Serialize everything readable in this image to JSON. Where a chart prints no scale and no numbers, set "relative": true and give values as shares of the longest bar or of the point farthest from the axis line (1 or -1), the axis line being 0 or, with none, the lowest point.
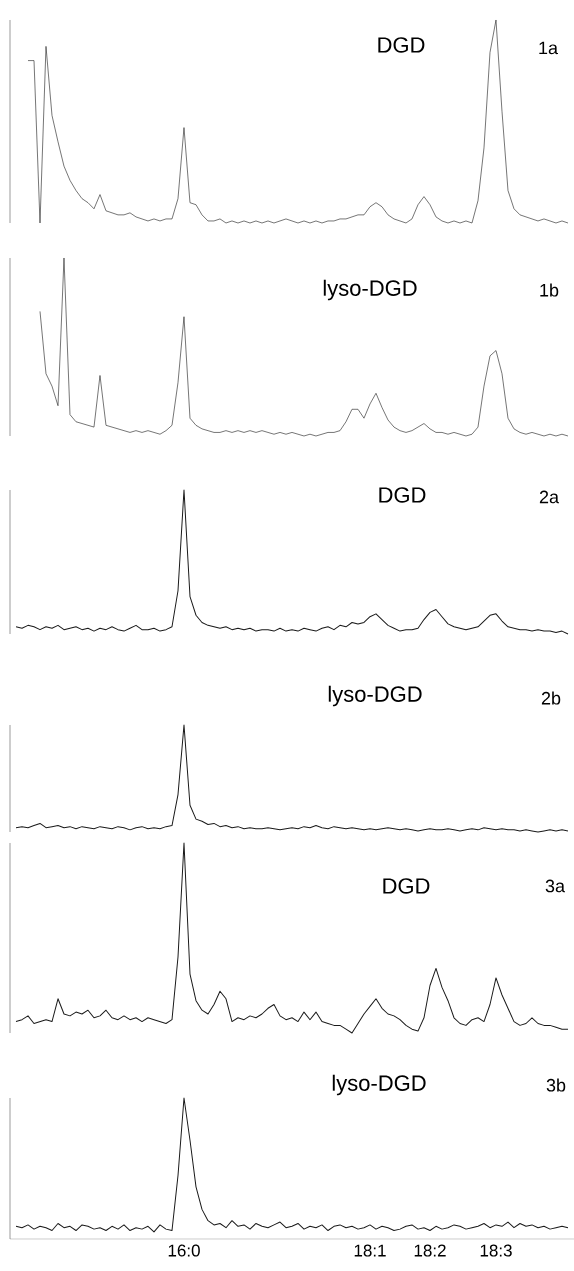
{
  "chart_data": [
    {
      "type": "line",
      "relative": true,
      "tick_labels": false,
      "annotations": [
        "DGD",
        "1a"
      ],
      "categories": [
        null,
        null,
        null,
        null,
        null,
        null,
        null,
        null,
        null,
        null,
        null,
        null,
        null,
        null,
        null,
        null,
        null,
        null,
        null,
        null,
        null,
        null,
        null,
        null,
        null,
        null,
        null,
        null,
        null,
        null,
        null,
        null,
        null,
        null,
        null,
        null,
        null,
        null,
        null,
        null,
        null,
        null,
        null,
        null,
        null,
        null,
        null,
        null,
        null,
        null,
        null,
        null,
        null,
        null,
        null,
        null,
        null,
        null,
        null,
        null,
        null,
        null,
        null,
        null,
        null,
        null,
        null,
        null,
        null,
        null,
        null,
        null,
        null,
        null,
        null,
        null,
        null,
        null,
        null,
        null,
        null,
        null,
        null,
        null,
        null,
        null,
        null,
        null,
        null,
        null,
        null,
        null,
        null
      ],
      "series": [
        {
          "color": "#1a1a1a",
          "values": [
            null,
            null,
            0.8,
            0.8,
            0,
            0.87,
            0.53,
            0.4,
            0.28,
            0.21,
            0.16,
            0.12,
            0.1,
            0.07,
            0.14,
            0.06,
            0.05,
            0.04,
            0.04,
            0.05,
            0.03,
            0.02,
            0.01,
            0.02,
            0.01,
            0.02,
            0.02,
            0.12,
            0.47,
            0.1,
            0.09,
            0.04,
            0.01,
            0.01,
            0.02,
            0,
            0.01,
            0,
            0.01,
            0,
            0.01,
            0,
            0.01,
            0,
            0.01,
            0.02,
            0.01,
            0,
            0.01,
            0,
            0.01,
            0,
            0.01,
            0.01,
            0.02,
            0.02,
            0.03,
            0.04,
            0.04,
            0.08,
            0.1,
            0.08,
            0.04,
            0.02,
            0.01,
            0,
            0.02,
            0.09,
            0.13,
            0.09,
            0.03,
            0.01,
            0,
            0.01,
            0,
            0.01,
            0,
            0.11,
            0.37,
            0.84,
            1,
            0.55,
            0.16,
            0.07,
            0.04,
            0.03,
            0.02,
            0.01,
            0.02,
            0.01,
            0,
            0.01,
            0
          ]
        }
      ]
    },
    {
      "type": "line",
      "relative": true,
      "tick_labels": false,
      "annotations": [
        "lyso-DGD",
        "1b"
      ],
      "categories": [
        null,
        null,
        null,
        null,
        null,
        null,
        null,
        null,
        null,
        null,
        null,
        null,
        null,
        null,
        null,
        null,
        null,
        null,
        null,
        null,
        null,
        null,
        null,
        null,
        null,
        null,
        null,
        null,
        null,
        null,
        null,
        null,
        null,
        null,
        null,
        null,
        null,
        null,
        null,
        null,
        null,
        null,
        null,
        null,
        null,
        null,
        null,
        null,
        null,
        null,
        null,
        null,
        null,
        null,
        null,
        null,
        null,
        null,
        null,
        null,
        null,
        null,
        null,
        null,
        null,
        null,
        null,
        null,
        null,
        null,
        null,
        null,
        null,
        null,
        null,
        null,
        null,
        null,
        null,
        null,
        null,
        null,
        null,
        null,
        null,
        null,
        null,
        null,
        null,
        null,
        null,
        null,
        null
      ],
      "series": [
        {
          "color": "#1a1a1a",
          "values": [
            null,
            null,
            null,
            null,
            0.7,
            0.35,
            0.28,
            0.17,
            1,
            0.12,
            0.08,
            0.07,
            0.06,
            0.05,
            0.34,
            0.06,
            0.05,
            0.04,
            0.03,
            0.02,
            0.03,
            0.02,
            0.03,
            0.02,
            0.01,
            0.03,
            0.06,
            0.3,
            0.67,
            0.1,
            0.06,
            0.04,
            0.03,
            0.02,
            0.02,
            0.03,
            0.02,
            0.03,
            0.02,
            0.03,
            0.02,
            0.03,
            0.02,
            0.01,
            0.02,
            0.01,
            0.02,
            0.01,
            0,
            0.01,
            0,
            0.01,
            0.02,
            0.02,
            0.03,
            0.08,
            0.15,
            0.15,
            0.1,
            0.18,
            0.24,
            0.16,
            0.09,
            0.05,
            0.03,
            0.02,
            0.03,
            0.05,
            0.07,
            0.04,
            0.02,
            0.02,
            0.01,
            0.02,
            0.01,
            0,
            0.01,
            0.05,
            0.28,
            0.45,
            0.48,
            0.35,
            0.1,
            0.04,
            0.02,
            0.01,
            0.02,
            0.01,
            0,
            0.01,
            0,
            0.01,
            0
          ]
        }
      ]
    },
    {
      "type": "line",
      "relative": true,
      "tick_labels": false,
      "annotations": [
        "DGD",
        "2a"
      ],
      "categories": [
        null,
        null,
        null,
        null,
        null,
        null,
        null,
        null,
        null,
        null,
        null,
        null,
        null,
        null,
        null,
        null,
        null,
        null,
        null,
        null,
        null,
        null,
        null,
        null,
        null,
        null,
        null,
        null,
        null,
        null,
        null,
        null,
        null,
        null,
        null,
        null,
        null,
        null,
        null,
        null,
        null,
        null,
        null,
        null,
        null,
        null,
        null,
        null,
        null,
        null,
        null,
        null,
        null,
        null,
        null,
        null,
        null,
        null,
        null,
        null,
        null,
        null,
        null,
        null,
        null,
        null,
        null,
        null,
        null,
        null,
        null,
        null,
        null,
        null,
        null,
        null,
        null,
        null,
        null,
        null,
        null,
        null,
        null,
        null,
        null,
        null,
        null,
        null,
        null,
        null,
        null,
        null,
        null
      ],
      "series": [
        {
          "color": "#1a1a1a",
          "values": [
            0.05,
            0.04,
            0.06,
            0.05,
            0.03,
            0.05,
            0.04,
            0.06,
            0.03,
            0.04,
            0.05,
            0.03,
            0.04,
            0.02,
            0.04,
            0.03,
            0.05,
            0.03,
            0.02,
            0.04,
            0.06,
            0.03,
            0.03,
            0.04,
            0.02,
            0.03,
            0.05,
            0.3,
            1,
            0.26,
            0.13,
            0.08,
            0.06,
            0.05,
            0.04,
            0.05,
            0.03,
            0.04,
            0.03,
            0.04,
            0.02,
            0.03,
            0.03,
            0.02,
            0.04,
            0.02,
            0.03,
            0.02,
            0.04,
            0.03,
            0.02,
            0.04,
            0.05,
            0.03,
            0.06,
            0.05,
            0.08,
            0.07,
            0.08,
            0.12,
            0.14,
            0.1,
            0.06,
            0.04,
            0.02,
            0.03,
            0.03,
            0.04,
            0.1,
            0.15,
            0.17,
            0.12,
            0.07,
            0.05,
            0.04,
            0.03,
            0.04,
            0.05,
            0.09,
            0.13,
            0.14,
            0.09,
            0.05,
            0.04,
            0.03,
            0.03,
            0.02,
            0.03,
            0.02,
            0.02,
            0.01,
            0.02,
            0
          ]
        }
      ]
    },
    {
      "type": "line",
      "relative": true,
      "tick_labels": false,
      "annotations": [
        "lyso-DGD",
        "2b"
      ],
      "categories": [
        null,
        null,
        null,
        null,
        null,
        null,
        null,
        null,
        null,
        null,
        null,
        null,
        null,
        null,
        null,
        null,
        null,
        null,
        null,
        null,
        null,
        null,
        null,
        null,
        null,
        null,
        null,
        null,
        null,
        null,
        null,
        null,
        null,
        null,
        null,
        null,
        null,
        null,
        null,
        null,
        null,
        null,
        null,
        null,
        null,
        null,
        null,
        null,
        null,
        null,
        null,
        null,
        null,
        null,
        null,
        null,
        null,
        null,
        null,
        null,
        null,
        null,
        null,
        null,
        null,
        null,
        null,
        null,
        null,
        null,
        null,
        null,
        null,
        null,
        null,
        null,
        null,
        null,
        null,
        null,
        null,
        null,
        null,
        null,
        null,
        null,
        null,
        null,
        null,
        null,
        null,
        null,
        null
      ],
      "series": [
        {
          "color": "#1a1a1a",
          "values": [
            0.04,
            0.05,
            0.04,
            0.06,
            0.08,
            0.04,
            0.05,
            0.06,
            0.04,
            0.05,
            0.03,
            0.05,
            0.04,
            0.03,
            0.05,
            0.04,
            0.03,
            0.05,
            0.04,
            0.02,
            0.04,
            0.05,
            0.03,
            0.04,
            0.03,
            0.05,
            0.06,
            0.35,
            1,
            0.25,
            0.12,
            0.1,
            0.07,
            0.08,
            0.05,
            0.06,
            0.04,
            0.05,
            0.03,
            0.04,
            0.03,
            0.03,
            0.04,
            0.03,
            0.02,
            0.03,
            0.04,
            0.03,
            0.05,
            0.04,
            0.06,
            0.04,
            0.03,
            0.05,
            0.04,
            0.03,
            0.04,
            0.03,
            0.02,
            0.03,
            0.02,
            0.03,
            0.04,
            0.03,
            0.02,
            0.03,
            0.02,
            0.01,
            0.02,
            0.03,
            0.02,
            0.02,
            0.03,
            0.02,
            0.01,
            0.02,
            0.03,
            0.02,
            0.04,
            0.03,
            0.02,
            0.03,
            0.02,
            0.02,
            0.01,
            0.02,
            0.01,
            0,
            0.01,
            0.02,
            0.01,
            0.02,
            0.01
          ]
        }
      ]
    },
    {
      "type": "line",
      "relative": true,
      "tick_labels": false,
      "annotations": [
        "DGD",
        "3a"
      ],
      "categories": [
        null,
        null,
        null,
        null,
        null,
        null,
        null,
        null,
        null,
        null,
        null,
        null,
        null,
        null,
        null,
        null,
        null,
        null,
        null,
        null,
        null,
        null,
        null,
        null,
        null,
        null,
        null,
        null,
        null,
        null,
        null,
        null,
        null,
        null,
        null,
        null,
        null,
        null,
        null,
        null,
        null,
        null,
        null,
        null,
        null,
        null,
        null,
        null,
        null,
        null,
        null,
        null,
        null,
        null,
        null,
        null,
        null,
        null,
        null,
        null,
        null,
        null,
        null,
        null,
        null,
        null,
        null,
        null,
        null,
        null,
        null,
        null,
        null,
        null,
        null,
        null,
        null,
        null,
        null,
        null,
        null,
        null,
        null,
        null,
        null,
        null,
        null,
        null,
        null,
        null,
        null,
        null,
        null
      ],
      "series": [
        {
          "color": "#1a1a1a",
          "values": [
            0.06,
            0.07,
            0.09,
            0.05,
            0.06,
            0.07,
            0.06,
            0.18,
            0.1,
            0.09,
            0.11,
            0.1,
            0.12,
            0.08,
            0.09,
            0.12,
            0.08,
            0.07,
            0.09,
            0.07,
            0.08,
            0.06,
            0.08,
            0.07,
            0.06,
            0.05,
            0.07,
            0.4,
            1,
            0.31,
            0.17,
            0.12,
            0.1,
            0.15,
            0.22,
            0.18,
            0.06,
            0.08,
            0.07,
            0.09,
            0.08,
            0.1,
            0.13,
            0.15,
            0.09,
            0.07,
            0.08,
            0.06,
            0.11,
            0.07,
            0.11,
            0.06,
            0.05,
            0.04,
            0.04,
            0.02,
            0,
            0.05,
            0.1,
            0.14,
            0.18,
            0.13,
            0.1,
            0.09,
            0.07,
            0.04,
            0.02,
            0.01,
            0.08,
            0.25,
            0.34,
            0.24,
            0.17,
            0.08,
            0.05,
            0.04,
            0.07,
            0.08,
            0.06,
            0.15,
            0.29,
            0.2,
            0.13,
            0.06,
            0.04,
            0.05,
            0.08,
            0.05,
            0.04,
            0.04,
            0.03,
            0.02,
            0.02
          ]
        }
      ]
    },
    {
      "type": "line",
      "relative": true,
      "tick_labels": "x",
      "annotations": [
        "lyso-DGD",
        "3b"
      ],
      "categories": [
        null,
        null,
        null,
        null,
        null,
        null,
        null,
        null,
        null,
        null,
        null,
        null,
        null,
        null,
        null,
        null,
        null,
        null,
        null,
        null,
        null,
        null,
        null,
        null,
        null,
        null,
        null,
        null,
        "16:0",
        null,
        null,
        null,
        null,
        null,
        null,
        null,
        null,
        null,
        null,
        null,
        null,
        null,
        null,
        null,
        null,
        null,
        null,
        null,
        null,
        null,
        null,
        null,
        null,
        null,
        null,
        null,
        null,
        null,
        null,
        "18:1",
        null,
        null,
        null,
        null,
        null,
        null,
        null,
        null,
        null,
        "18:2",
        null,
        null,
        null,
        null,
        null,
        null,
        null,
        null,
        null,
        null,
        "18:3",
        null,
        null,
        null,
        null,
        null,
        null,
        null,
        null,
        null,
        null,
        null,
        null
      ],
      "series": [
        {
          "color": "#1a1a1a",
          "values": [
            0.09,
            0.08,
            0.1,
            0.07,
            0.09,
            0.08,
            0.06,
            0.11,
            0.08,
            0.09,
            0.06,
            0.1,
            0.09,
            0.07,
            0.08,
            0.06,
            0.09,
            0.07,
            0.1,
            0.06,
            0.08,
            0.07,
            0.09,
            0.05,
            0.1,
            0.07,
            0.06,
            0.45,
            1,
            0.7,
            0.37,
            0.21,
            0.13,
            0.1,
            0.11,
            0.08,
            0.13,
            0.09,
            0.1,
            0.07,
            0.11,
            0.09,
            0.08,
            0.1,
            0.12,
            0.08,
            0.09,
            0.11,
            0.07,
            0.09,
            0.08,
            0.1,
            0.06,
            0.09,
            0.1,
            0.08,
            0.09,
            0.07,
            0.08,
            0.1,
            0.07,
            0.09,
            0.08,
            0.06,
            0.07,
            0.09,
            0.1,
            0.07,
            0.08,
            0.06,
            0.09,
            0.07,
            0.08,
            0.1,
            0.09,
            0.07,
            0.08,
            0.09,
            0.11,
            0.08,
            0.1,
            0.09,
            0.12,
            0.08,
            0.11,
            0.09,
            0.1,
            0.08,
            0.09,
            0.07,
            0.08,
            0.09,
            0.08
          ]
        }
      ]
    }
  ]
}
